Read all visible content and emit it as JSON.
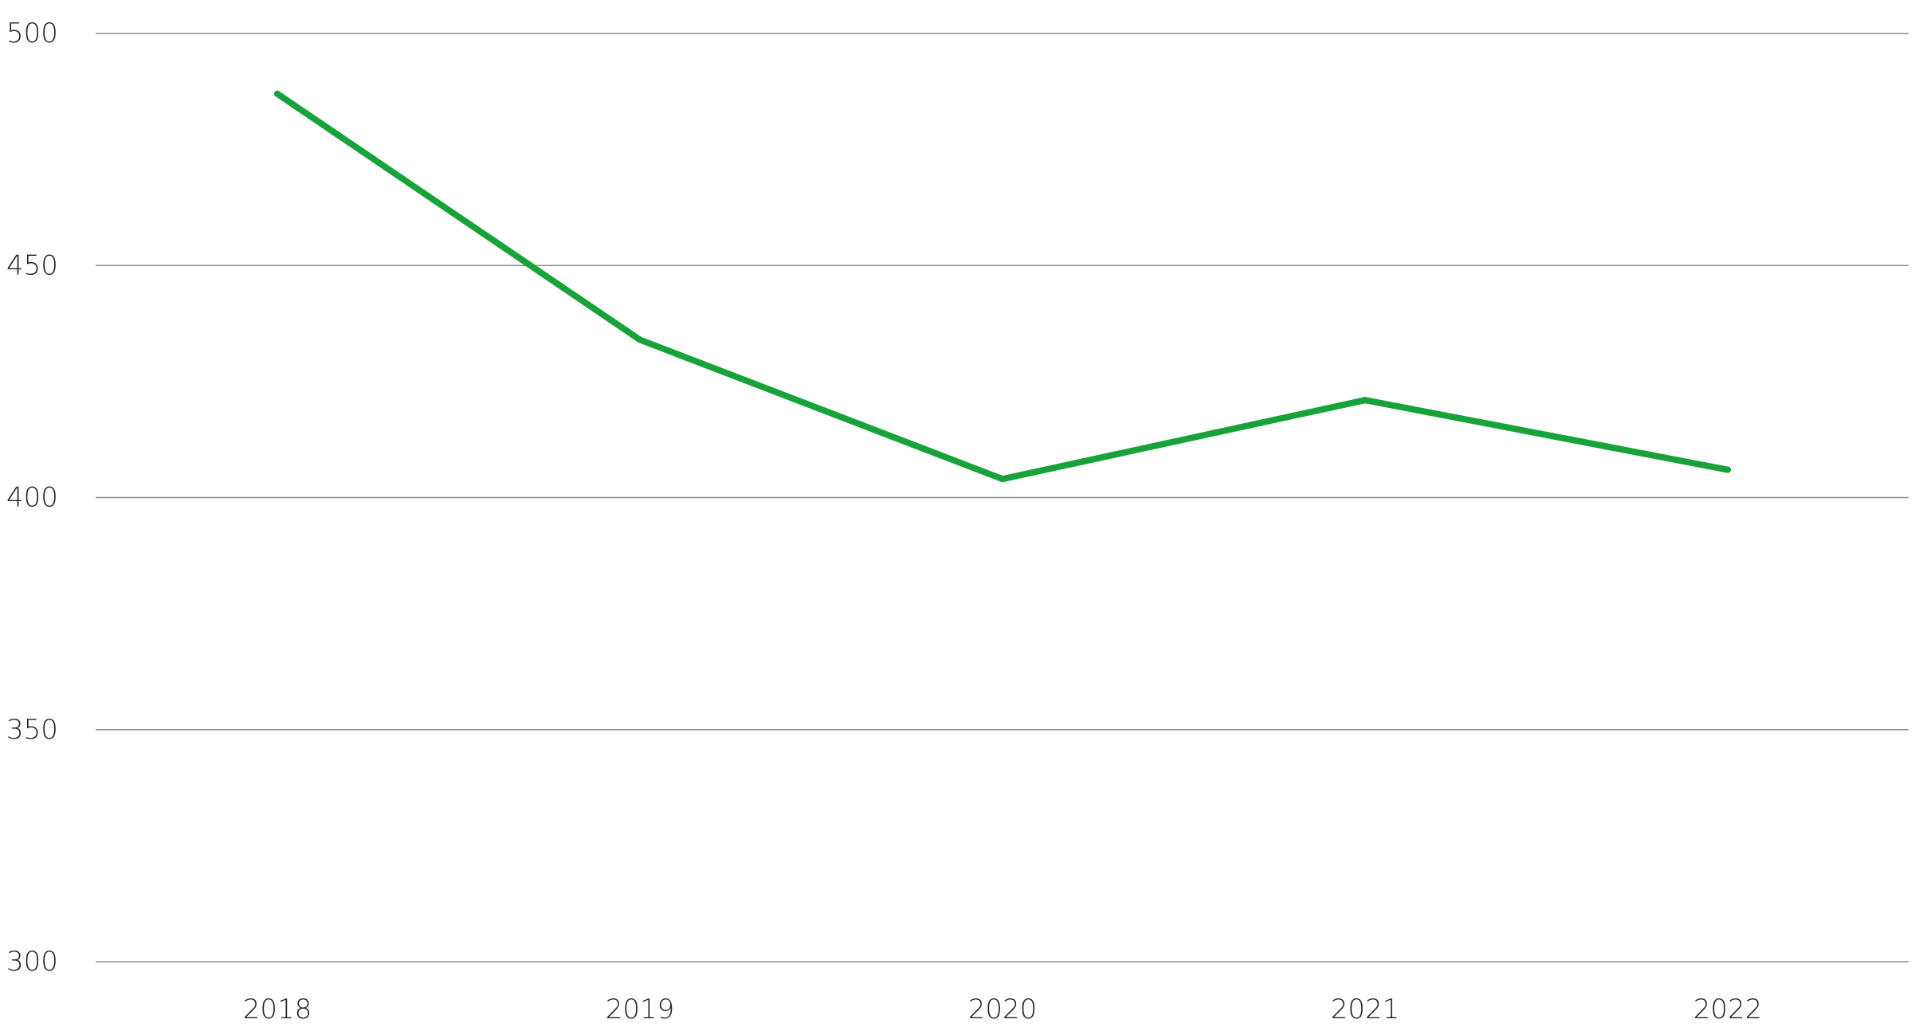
{
  "chart_data": {
    "type": "line",
    "title": "",
    "xlabel": "",
    "ylabel": "",
    "categories": [
      "2018",
      "2019",
      "2020",
      "2021",
      "2022"
    ],
    "series": [
      {
        "values": [
          487,
          434,
          404,
          421,
          406
        ],
        "color": "#18a33a"
      }
    ],
    "ylim": [
      300,
      500
    ],
    "yticks": [
      300,
      350,
      400,
      450,
      500
    ],
    "ytick_labels": [
      "300",
      "350",
      "400",
      "450",
      "500"
    ],
    "grid": true,
    "legend": "none",
    "colors": {
      "grid": "#8c8c8c",
      "text": "#222222"
    }
  }
}
